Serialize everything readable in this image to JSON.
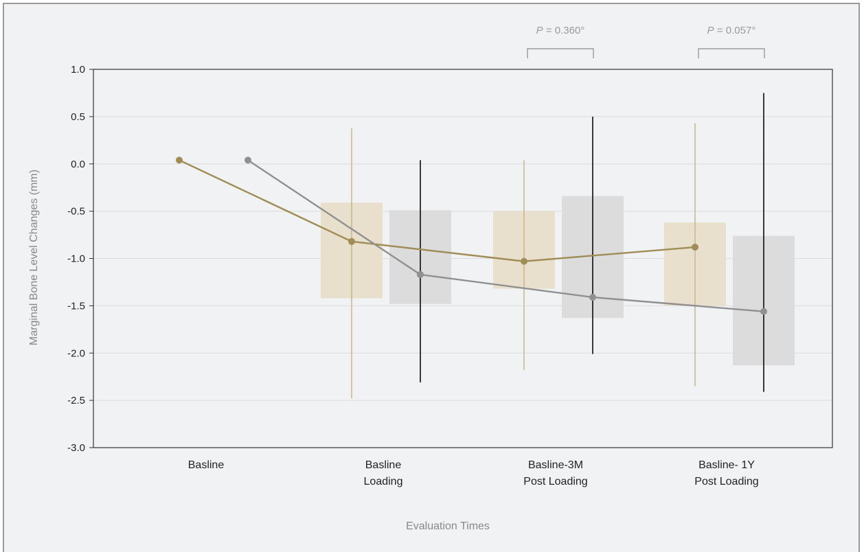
{
  "chart_data": {
    "type": "line",
    "xlabel": "Evaluation Times",
    "ylabel": "Marginal Bone Level Changes (mm)",
    "ylim": [
      -3.0,
      1.0
    ],
    "yticks": [
      "1.0",
      "0.5",
      "0.0",
      "-0.5",
      "-1.0",
      "-1.5",
      "-2.0",
      "-2.5",
      "-3.0"
    ],
    "ytick_values": [
      1.0,
      0.5,
      0.0,
      -0.5,
      -1.0,
      -1.5,
      -2.0,
      -2.5,
      -3.0
    ],
    "grid": "horizontal",
    "categories": [
      [
        "Basline"
      ],
      [
        "Basline",
        "Loading"
      ],
      [
        "Basline-3M",
        "Post Loading"
      ],
      [
        "Basline- 1Y",
        "Post Loading"
      ]
    ],
    "series": [
      {
        "color": "#a08c55",
        "bar_color": "#e8dfcc",
        "whisker_color": "#c9b890",
        "means": [
          0.04,
          -0.82,
          -1.03,
          -0.88
        ],
        "box_low": [
          null,
          -1.42,
          -1.32,
          -1.5
        ],
        "box_high": [
          null,
          -0.41,
          -0.5,
          -0.62
        ],
        "whisker_low": [
          null,
          -2.48,
          -2.18,
          -2.35
        ],
        "whisker_high": [
          null,
          0.38,
          0.04,
          0.43
        ]
      },
      {
        "color": "#909090",
        "bar_color": "#dcdcdd",
        "whisker_color": "#222222",
        "means": [
          0.04,
          -1.17,
          -1.41,
          -1.56
        ],
        "box_low": [
          null,
          -1.48,
          -1.63,
          -2.13
        ],
        "box_high": [
          null,
          -0.49,
          -0.34,
          -0.76
        ],
        "whisker_low": [
          null,
          -2.31,
          -2.01,
          -2.41
        ],
        "whisker_high": [
          null,
          0.04,
          0.5,
          0.75
        ]
      }
    ],
    "annotations": [
      {
        "category_index": 2,
        "p_label": "P",
        "p_value": "= 0.360°"
      },
      {
        "category_index": 3,
        "p_label": "P",
        "p_value": "= 0.057°"
      }
    ]
  }
}
